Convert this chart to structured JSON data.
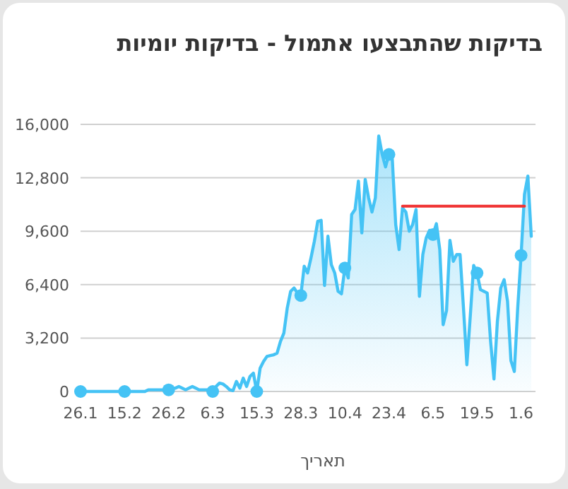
{
  "chart_data": {
    "type": "area",
    "title": "בדיקות שהתבצעו אתמול - בדיקות יומיות",
    "xlabel": "תאריך",
    "categories": [
      "26.1",
      null,
      null,
      null,
      null,
      null,
      null,
      null,
      null,
      null,
      null,
      null,
      null,
      "15.2",
      null,
      null,
      null,
      null,
      null,
      null,
      null,
      null,
      null,
      null,
      null,
      null,
      "26.2",
      null,
      null,
      null,
      null,
      null,
      null,
      null,
      null,
      null,
      null,
      null,
      null,
      "6.3",
      null,
      null,
      null,
      null,
      null,
      null,
      null,
      null,
      null,
      null,
      null,
      null,
      "15.3",
      null,
      null,
      null,
      null,
      null,
      null,
      null,
      null,
      null,
      null,
      null,
      null,
      "28.3",
      null,
      null,
      null,
      null,
      null,
      null,
      null,
      null,
      null,
      null,
      null,
      null,
      "10.4",
      null,
      null,
      null,
      null,
      null,
      null,
      null,
      null,
      null,
      null,
      null,
      null,
      "23.4",
      null,
      null,
      null,
      null,
      null,
      null,
      null,
      null,
      null,
      null,
      null,
      null,
      "6.5",
      null,
      null,
      null,
      null,
      null,
      null,
      null,
      null,
      null,
      null,
      null,
      null,
      "19.5",
      null,
      null,
      null,
      null,
      null,
      null,
      null,
      null,
      null,
      null,
      null,
      null,
      "1.6",
      null,
      null,
      null
    ],
    "series": [
      {
        "color": "#45c3f5",
        "values": [
          0,
          0,
          0,
          0,
          0,
          0,
          0,
          0,
          0,
          0,
          0,
          0,
          0,
          0,
          0,
          0,
          0,
          0,
          0,
          0,
          100,
          100,
          100,
          100,
          100,
          100,
          100,
          200,
          200,
          300,
          200,
          100,
          200,
          300,
          200,
          100,
          100,
          100,
          100,
          0,
          300,
          500,
          450,
          300,
          100,
          50,
          600,
          200,
          800,
          300,
          900,
          1100,
          0,
          1400,
          1800,
          2100,
          2150,
          2200,
          2300,
          3000,
          3500,
          5000,
          6000,
          6200,
          5900,
          5750,
          7500,
          7100,
          8000,
          9000,
          10200,
          10250,
          6350,
          9300,
          7600,
          7100,
          6000,
          5850,
          7400,
          6800,
          10600,
          10900,
          12600,
          9500,
          12700,
          11600,
          10750,
          11600,
          15300,
          14200,
          13450,
          14200,
          13900,
          10000,
          8500,
          11000,
          10750,
          9600,
          10000,
          10900,
          5700,
          8200,
          9200,
          9650,
          9400,
          10050,
          8500,
          4000,
          4850,
          9050,
          7800,
          8200,
          8200,
          5000,
          1600,
          4500,
          7550,
          7100,
          6100,
          6000,
          5900,
          3000,
          750,
          4200,
          6200,
          6700,
          5400,
          1850,
          1200,
          5000,
          8150,
          11800,
          12900,
          9300
        ]
      },
      {
        "type": "line",
        "color": "#f03232",
        "values": [
          null,
          null,
          null,
          null,
          null,
          null,
          null,
          null,
          null,
          null,
          null,
          null,
          null,
          null,
          null,
          null,
          null,
          null,
          null,
          null,
          null,
          null,
          null,
          null,
          null,
          null,
          null,
          null,
          null,
          null,
          null,
          null,
          null,
          null,
          null,
          null,
          null,
          null,
          null,
          null,
          null,
          null,
          null,
          null,
          null,
          null,
          null,
          null,
          null,
          null,
          null,
          null,
          null,
          null,
          null,
          null,
          null,
          null,
          null,
          null,
          null,
          null,
          null,
          null,
          null,
          null,
          null,
          null,
          null,
          null,
          null,
          null,
          null,
          null,
          null,
          null,
          null,
          null,
          null,
          null,
          null,
          null,
          null,
          null,
          null,
          null,
          null,
          null,
          null,
          null,
          null,
          null,
          null,
          null,
          null,
          11100,
          11100,
          11100,
          11100,
          11100,
          11100,
          11100,
          11100,
          11100,
          11100,
          11100,
          11100,
          11100,
          11100,
          11100,
          11100,
          11100,
          11100,
          11100,
          11100,
          11100,
          11100,
          11100,
          11100,
          11100,
          11100,
          11100,
          11100,
          11100,
          11100,
          11100,
          11100,
          11100,
          11100,
          11100,
          11100,
          11100,
          null,
          null
        ]
      },
      {
        "type": "scatter",
        "color": "#45c3f5",
        "marker": "circle",
        "values": [
          0,
          null,
          null,
          null,
          null,
          null,
          null,
          null,
          null,
          null,
          null,
          null,
          null,
          0,
          null,
          null,
          null,
          null,
          null,
          null,
          null,
          null,
          null,
          null,
          null,
          null,
          100,
          null,
          null,
          null,
          null,
          null,
          null,
          null,
          null,
          null,
          null,
          null,
          null,
          0,
          null,
          null,
          null,
          null,
          null,
          null,
          null,
          null,
          null,
          null,
          null,
          null,
          0,
          null,
          null,
          null,
          null,
          null,
          null,
          null,
          null,
          null,
          null,
          null,
          null,
          5750,
          null,
          null,
          null,
          null,
          null,
          null,
          null,
          null,
          null,
          null,
          null,
          null,
          7400,
          null,
          null,
          null,
          null,
          null,
          null,
          null,
          null,
          null,
          null,
          null,
          null,
          14200,
          null,
          null,
          null,
          null,
          null,
          null,
          null,
          null,
          null,
          null,
          null,
          null,
          9400,
          null,
          null,
          null,
          null,
          null,
          null,
          null,
          null,
          null,
          null,
          null,
          null,
          7100,
          null,
          null,
          null,
          null,
          null,
          null,
          null,
          null,
          null,
          null,
          null,
          null,
          8150,
          null,
          null,
          null
        ]
      }
    ],
    "ylim": [
      0,
      16000
    ],
    "yticks": [
      0,
      {
        "value": 3200,
        "label": "3,200"
      },
      {
        "value": 6400,
        "label": "6,400"
      },
      {
        "value": 9600,
        "label": "9,600"
      },
      {
        "value": 12800,
        "label": "12,800"
      },
      {
        "value": 16000,
        "label": "16,000"
      }
    ],
    "grid": "y",
    "line_style": "solid"
  }
}
